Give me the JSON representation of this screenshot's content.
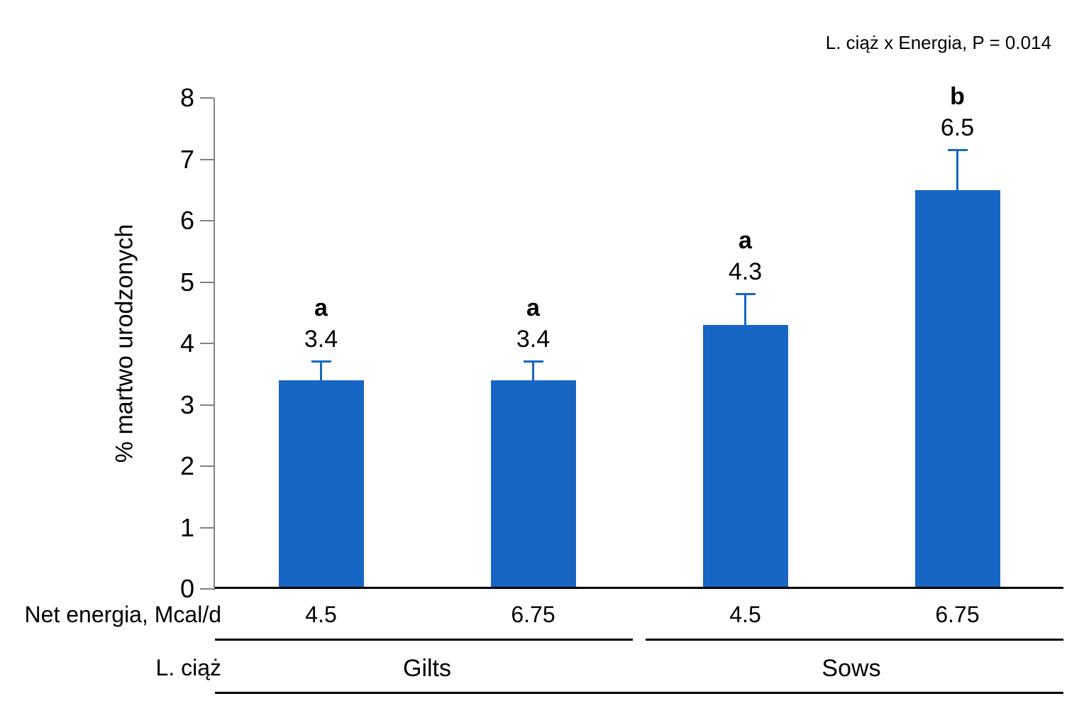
{
  "colors": {
    "bar_fill": "#1766C4",
    "error_bar": "#1766C4",
    "axis_line": "#808080",
    "rule_line": "#000000",
    "text": "#000000"
  },
  "chart_data": {
    "type": "bar",
    "title": "",
    "annotation": "L. ciąż x Energia, P = 0.014",
    "ylabel": "% martwo urodzonych",
    "ylim": [
      0,
      8
    ],
    "yticks": [
      0,
      1,
      2,
      3,
      4,
      5,
      6,
      7,
      8
    ],
    "grid": false,
    "legend": null,
    "x_row_labels": {
      "energy": "Net energia, Mcal/d",
      "parity": "L. ciąż"
    },
    "groups": [
      {
        "label": "Gilts",
        "bars": [
          {
            "energy": "4.5",
            "value": 3.4,
            "value_label": "3.4",
            "error_upper": 0.3,
            "sig_letter": "a"
          },
          {
            "energy": "6.75",
            "value": 3.4,
            "value_label": "3.4",
            "error_upper": 0.3,
            "sig_letter": "a"
          }
        ]
      },
      {
        "label": "Sows",
        "bars": [
          {
            "energy": "4.5",
            "value": 4.3,
            "value_label": "4.3",
            "error_upper": 0.5,
            "sig_letter": "a"
          },
          {
            "energy": "6.75",
            "value": 6.5,
            "value_label": "6.5",
            "error_upper": 0.65,
            "sig_letter": "b"
          }
        ]
      }
    ]
  }
}
